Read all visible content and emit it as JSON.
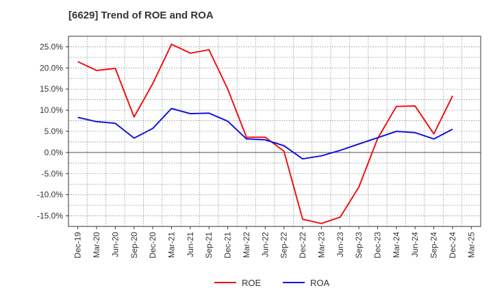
{
  "chart_data": {
    "type": "line",
    "title": "[6629]  Trend of ROE and ROA",
    "xlabel": "",
    "ylabel": "",
    "categories": [
      "Dec-19",
      "Mar-20",
      "Jun-20",
      "Sep-20",
      "Dec-20",
      "Mar-21",
      "Jun-21",
      "Sep-21",
      "Dec-21",
      "Mar-22",
      "Jun-22",
      "Sep-22",
      "Dec-22",
      "Mar-23",
      "Jun-23",
      "Sep-23",
      "Dec-23",
      "Mar-24",
      "Jun-24",
      "Sep-24",
      "Dec-24",
      "Mar-25"
    ],
    "ylim": [
      -17.5,
      27.5
    ],
    "yticks": [
      25,
      20,
      15,
      10,
      5,
      0,
      -5,
      -10,
      -15
    ],
    "ytick_labels": [
      "25.0%",
      "20.0%",
      "15.0%",
      "10.0%",
      "5.0%",
      "0.0%",
      "-5.0%",
      "-10.0%",
      "-15.0%"
    ],
    "grid": true,
    "legend_position": "bottom",
    "series": [
      {
        "name": "ROE",
        "color": "#ee1111",
        "values": [
          21.5,
          19.4,
          19.9,
          8.4,
          16.3,
          25.6,
          23.5,
          24.3,
          15.0,
          3.6,
          3.6,
          0.3,
          -15.8,
          -16.8,
          -15.3,
          -8.2,
          3.3,
          10.9,
          11.0,
          4.4,
          13.4,
          null
        ]
      },
      {
        "name": "ROA",
        "color": "#1111dd",
        "values": [
          8.3,
          7.3,
          6.9,
          3.4,
          5.7,
          10.4,
          9.2,
          9.3,
          7.4,
          3.2,
          3.0,
          1.6,
          -1.5,
          -0.8,
          0.5,
          2.0,
          3.5,
          5.0,
          4.7,
          3.2,
          5.5,
          null
        ]
      }
    ]
  }
}
